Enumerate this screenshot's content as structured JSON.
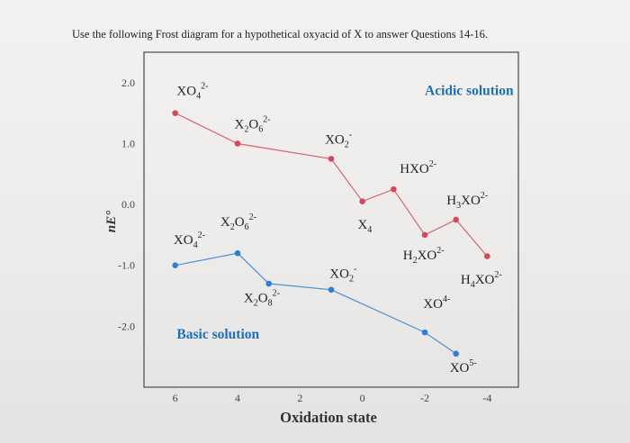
{
  "question_text": "Use the following Frost diagram for a hypothetical oxyacid of X to answer Questions 14-16.",
  "chart_data": {
    "type": "line",
    "title": "",
    "xlabel": "Oxidation state",
    "ylabel": "nE°",
    "xlim": [
      7,
      -5
    ],
    "ylim": [
      -3.0,
      2.5
    ],
    "x_ticks": [
      "6",
      "4",
      "2",
      "0",
      "-2",
      "-4"
    ],
    "x_tick_values": [
      6,
      4,
      2,
      0,
      -2,
      -4
    ],
    "y_ticks": [
      "2.0",
      "1.0",
      "0.0",
      "-1.0",
      "-2.0"
    ],
    "y_tick_values": [
      2.0,
      1.0,
      0.0,
      -1.0,
      -2.0
    ],
    "grid": false,
    "series": [
      {
        "name": "Acidic solution",
        "color": "#d24a5c",
        "points": [
          {
            "x": 6,
            "y": 1.5
          },
          {
            "x": 4,
            "y": 1.0
          },
          {
            "x": 1,
            "y": 0.75
          },
          {
            "x": 0,
            "y": 0.05
          },
          {
            "x": -1,
            "y": 0.25
          },
          {
            "x": -2,
            "y": -0.5
          },
          {
            "x": -3,
            "y": -0.25
          },
          {
            "x": -4,
            "y": -0.85
          }
        ]
      },
      {
        "name": "Basic solution",
        "color": "#2f7fd6",
        "points": [
          {
            "x": 6,
            "y": -1.0
          },
          {
            "x": 4,
            "y": -0.8
          },
          {
            "x": 3,
            "y": -1.3
          },
          {
            "x": 1,
            "y": -1.4
          },
          {
            "x": -2,
            "y": -2.1
          },
          {
            "x": -3,
            "y": -2.45
          }
        ]
      }
    ],
    "annotations": [
      {
        "text": "XO",
        "sub": "4",
        "sup": "2-",
        "x": 5.95,
        "y": 1.8,
        "color": "#222222"
      },
      {
        "text": "X",
        "sub": "2",
        "text2": "O",
        "sub2": "6",
        "sup": "2-",
        "x": 4.1,
        "y": 1.25,
        "color": "#222222"
      },
      {
        "text": "XO",
        "sub": "2",
        "sup": "-",
        "x": 1.2,
        "y": 1.0,
        "color": "#222222"
      },
      {
        "text": "HXO",
        "sup": "2-",
        "x": -1.2,
        "y": 0.52,
        "color": "#222222"
      },
      {
        "text": "H",
        "sub": "3",
        "text2": "XO",
        "sup": "2-",
        "x": -2.7,
        "y": 0.0,
        "color": "#222222"
      },
      {
        "text": "X",
        "sub": "4",
        "x": 0.15,
        "y": -0.4,
        "color": "#222222"
      },
      {
        "text": "X",
        "sub": "2",
        "text2": "O",
        "sub2": "6",
        "sup": "2-",
        "x": 4.55,
        "y": -0.35,
        "color": "#222222"
      },
      {
        "text": "XO",
        "sub": "4",
        "sup": "2-",
        "x": 6.05,
        "y": -0.65,
        "color": "#222222"
      },
      {
        "text": "H",
        "sub": "2",
        "text2": "XO",
        "sup": "2-",
        "x": -1.3,
        "y": -0.9,
        "color": "#222222"
      },
      {
        "text": "XO",
        "sub": "2",
        "sup": "-",
        "x": 1.05,
        "y": -1.2,
        "color": "#222222"
      },
      {
        "text": "H",
        "sub": "4",
        "text2": "XO",
        "sup": "2-",
        "x": -3.15,
        "y": -1.3,
        "color": "#222222"
      },
      {
        "text": "X",
        "sub": "2",
        "text2": "O",
        "sub2": "8",
        "sup": "2-",
        "x": 3.8,
        "y": -1.6,
        "color": "#222222"
      },
      {
        "text": "XO",
        "sup": "4-",
        "x": -1.95,
        "y": -1.7,
        "color": "#222222"
      },
      {
        "text": "XO",
        "sup": "5-",
        "x": -2.8,
        "y": -2.75,
        "color": "#222222"
      },
      {
        "text": "Acidic solution",
        "x": -2.0,
        "y": 1.8,
        "color": "#1f6fb4",
        "bold": true
      },
      {
        "text": "Basic solution",
        "x": 5.95,
        "y": -2.2,
        "color": "#1f6fb4",
        "bold": true
      }
    ]
  }
}
